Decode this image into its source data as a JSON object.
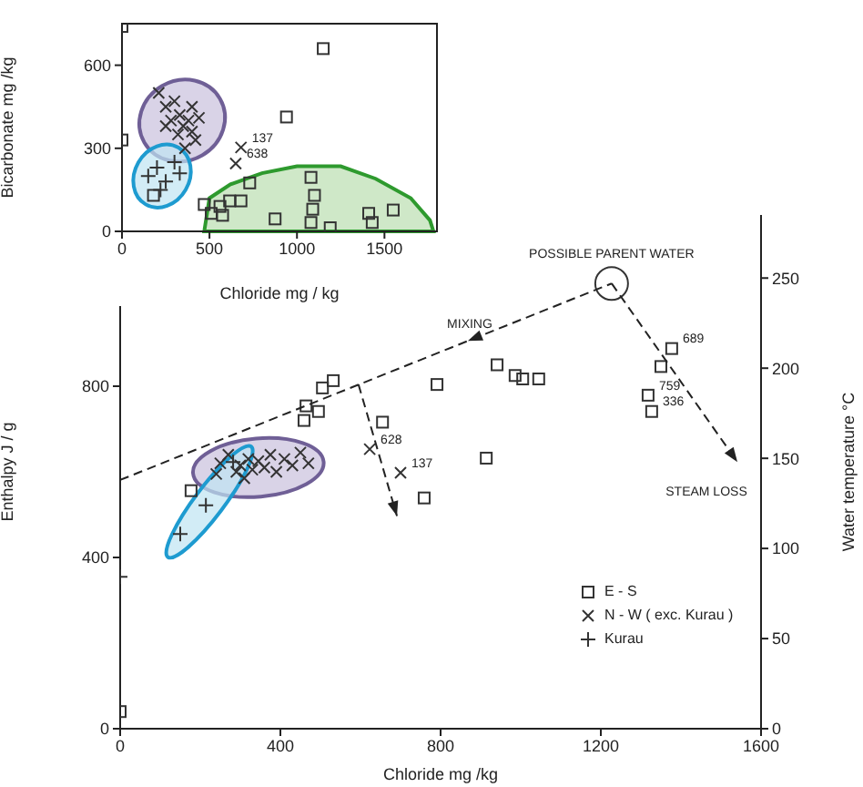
{
  "chart_data": [
    {
      "type": "scatter",
      "xlabel": "Chloride  mg /kg",
      "ylabel": "Enthalpy  J / g",
      "y2label": "Water temperature °C",
      "xlim": [
        0,
        1600
      ],
      "xticks": [
        0,
        400,
        800,
        1200,
        1600
      ],
      "ylim": [
        0,
        1200
      ],
      "yticks": [
        0,
        400,
        800
      ],
      "y2lim": [
        0,
        285
      ],
      "y2ticks": [
        0,
        50,
        100,
        150,
        200,
        250
      ],
      "legend": "bottom right",
      "series": [
        {
          "name": "E - S",
          "marker": "square",
          "color": "#333333",
          "x": [
            532,
            505,
            495,
            464,
            459,
            655,
            791,
            914,
            759,
            177,
            941,
            986,
            1005,
            1045,
            1350,
            1377,
            1318,
            1327,
            0
          ],
          "values": [
            813,
            796,
            741,
            754,
            720,
            716,
            804,
            632,
            539,
            556,
            850,
            825,
            817,
            817,
            846,
            888,
            779,
            741,
            40
          ]
        },
        {
          "name": "N - W  ( exc. Kurau )",
          "marker": "cross",
          "color": "#333333",
          "x": [
            250,
            270,
            290,
            300,
            320,
            330,
            345,
            360,
            375,
            390,
            410,
            430,
            450,
            470,
            240,
            310,
            623,
            700
          ],
          "values": [
            620,
            640,
            600,
            615,
            630,
            605,
            625,
            610,
            640,
            600,
            630,
            615,
            645,
            620,
            595,
            585,
            653,
            598
          ]
        },
        {
          "name": "Kurau",
          "marker": "plus",
          "color": "#333333",
          "x": [
            150,
            214,
            282,
            0
          ],
          "values": [
            455,
            522,
            623,
            355
          ]
        },
        {
          "marker": "circle",
          "color": "#333333",
          "x": [
            1227
          ],
          "values": [
            1040
          ]
        },
        {
          "type": "line",
          "line_style": "dashed",
          "marker": "none",
          "color": "#222222",
          "x": [
            0,
            1227
          ],
          "values": [
            581,
            1040
          ]
        }
      ],
      "annotations": [
        {
          "text": "POSSIBLE PARENT WATER",
          "x": 1227,
          "y": 1040
        },
        "MIXING",
        "STEAM LOSS",
        {
          "text": "689",
          "x": 1377,
          "y": 888
        },
        {
          "text": "759",
          "x": 1318,
          "y": 779
        },
        {
          "text": "336",
          "x": 1327,
          "y": 741
        },
        {
          "text": "628",
          "x": 623,
          "y": 653
        },
        {
          "text": "137",
          "x": 700,
          "y": 598
        }
      ]
    },
    {
      "type": "scatter",
      "xlabel": "Chloride  mg / kg",
      "ylabel": "Bicarbonate  mg /kg",
      "xlim": [
        0,
        1800
      ],
      "xticks": [
        0,
        500,
        1000,
        1500
      ],
      "ylim": [
        0,
        750
      ],
      "yticks": [
        0,
        300,
        600
      ],
      "series": [
        {
          "marker": "square",
          "color": "#333333",
          "x": [
            0,
            0,
            1150,
            940,
            470,
            510,
            560,
            615,
            680,
            575,
            730,
            875,
            1080,
            1100,
            1090,
            1080,
            1190,
            1410,
            1430,
            1550,
            180
          ],
          "values": [
            740,
            330,
            660,
            413,
            97,
            65,
            90,
            110,
            110,
            58,
            175,
            45,
            195,
            130,
            80,
            32,
            13,
            65,
            32,
            77,
            130
          ]
        },
        {
          "marker": "cross",
          "color": "#333333",
          "x": [
            210,
            250,
            300,
            330,
            350,
            380,
            400,
            420,
            280,
            320,
            360,
            250,
            440,
            400,
            680,
            650
          ],
          "values": [
            500,
            450,
            470,
            420,
            380,
            400,
            360,
            330,
            400,
            350,
            300,
            380,
            410,
            450,
            303,
            245
          ]
        },
        {
          "marker": "plus",
          "color": "#333333",
          "x": [
            150,
            200,
            250,
            300,
            220,
            330
          ],
          "values": [
            200,
            230,
            180,
            250,
            150,
            210
          ]
        }
      ],
      "annotations": [
        {
          "text": "137",
          "x": 680,
          "y": 303
        },
        {
          "text": "638",
          "x": 650,
          "y": 245
        }
      ]
    }
  ]
}
